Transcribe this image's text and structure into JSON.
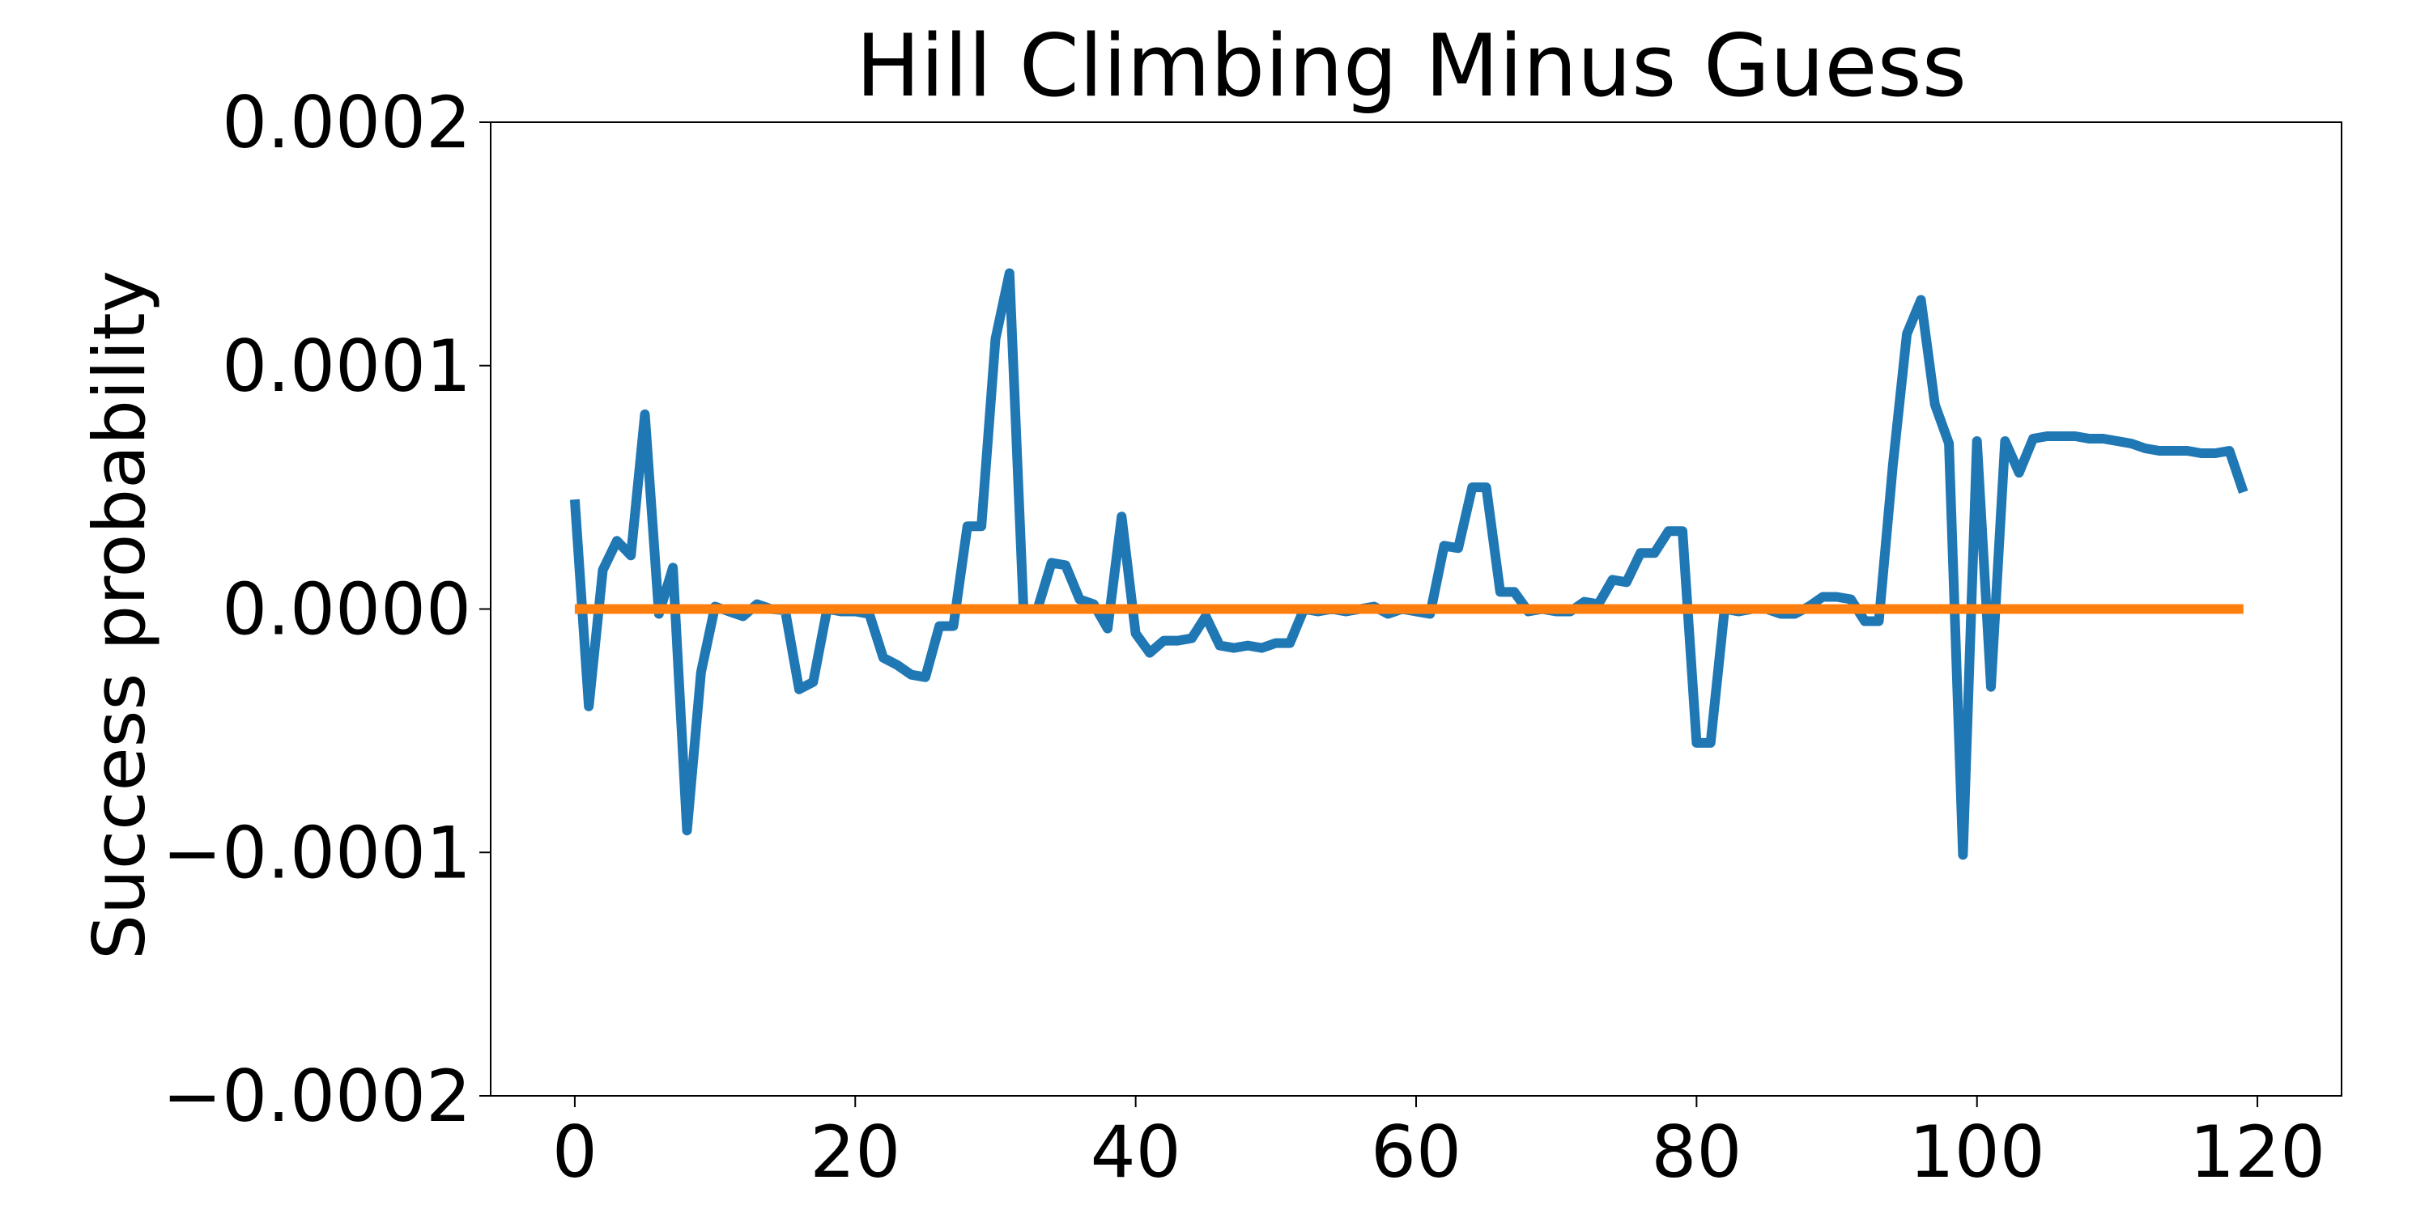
{
  "chart_data": {
    "type": "line",
    "title": "Hill Climbing Minus Guess",
    "xlabel": "",
    "ylabel": "Success probability",
    "xlim": [
      -6,
      126
    ],
    "ylim": [
      -0.0002,
      0.0002
    ],
    "xticks": [
      0,
      20,
      40,
      60,
      80,
      100,
      120
    ],
    "xtick_labels": [
      "0",
      "20",
      "40",
      "60",
      "80",
      "100",
      "120"
    ],
    "yticks": [
      0.0002,
      0.0001,
      0.0,
      -0.0001,
      -0.0002
    ],
    "ytick_labels": [
      "0.0002",
      "0.0001",
      "0.0000",
      "−0.0001",
      "−0.0002"
    ],
    "grid": false,
    "legend": "none",
    "series": [
      {
        "color": "#1f77b4",
        "values": [
          4.5e-05,
          -4e-05,
          1.6e-05,
          2.8e-05,
          2.2e-05,
          8e-05,
          -2e-06,
          1.7e-05,
          -9.1e-05,
          -2.6e-05,
          1e-06,
          -1e-06,
          -3e-06,
          2e-06,
          0.0,
          -5e-07,
          -3.3e-05,
          -3e-05,
          0.0,
          -1e-06,
          -1e-06,
          -2e-06,
          -2e-05,
          -2.3e-05,
          -2.7e-05,
          -2.8e-05,
          -7e-06,
          -7e-06,
          3.4e-05,
          3.4e-05,
          0.000111,
          0.000138,
          0.0,
          0.0,
          1.9e-05,
          1.8e-05,
          4e-06,
          2e-06,
          -8e-06,
          3.8e-05,
          -1e-05,
          -1.8e-05,
          -1.3e-05,
          -1.3e-05,
          -1.2e-05,
          -3e-06,
          -1.5e-05,
          -1.6e-05,
          -1.5e-05,
          -1.6e-05,
          -1.4e-05,
          -1.4e-05,
          0.0,
          -1e-06,
          0.0,
          -1e-06,
          0.0,
          1e-06,
          -2e-06,
          0.0,
          -1e-06,
          -2e-06,
          2.6e-05,
          2.5e-05,
          5e-05,
          5e-05,
          7e-06,
          7e-06,
          -1e-06,
          0.0,
          -1e-06,
          -1e-06,
          3e-06,
          2e-06,
          1.2e-05,
          1.1e-05,
          2.3e-05,
          2.3e-05,
          3.2e-05,
          3.2e-05,
          -5.5e-05,
          -5.5e-05,
          0.0,
          -1e-06,
          0.0,
          0.0,
          -2e-06,
          -2e-06,
          1e-06,
          5e-06,
          5e-06,
          4e-06,
          -5e-06,
          -5e-06,
          5.9e-05,
          0.000113,
          0.000127,
          8.4e-05,
          6.8e-05,
          -0.000101,
          6.9e-05,
          -3.2e-05,
          6.9e-05,
          5.6e-05,
          7e-05,
          7.1e-05,
          7.1e-05,
          7.1e-05,
          7e-05,
          7e-05,
          6.9e-05,
          6.8e-05,
          6.6e-05,
          6.5e-05,
          6.5e-05,
          6.5e-05,
          6.4e-05,
          6.4e-05,
          6.5e-05,
          4.8e-05
        ]
      },
      {
        "color": "#ff7f0e",
        "values": [
          0,
          0,
          0,
          0,
          0,
          0,
          0,
          0,
          0,
          0,
          0,
          0,
          0,
          0,
          0,
          0,
          0,
          0,
          0,
          0,
          0,
          0,
          0,
          0,
          0,
          0,
          0,
          0,
          0,
          0,
          0,
          0,
          0,
          0,
          0,
          0,
          0,
          0,
          0,
          0,
          0,
          0,
          0,
          0,
          0,
          0,
          0,
          0,
          0,
          0,
          0,
          0,
          0,
          0,
          0,
          0,
          0,
          0,
          0,
          0,
          0,
          0,
          0,
          0,
          0,
          0,
          0,
          0,
          0,
          0,
          0,
          0,
          0,
          0,
          0,
          0,
          0,
          0,
          0,
          0,
          0,
          0,
          0,
          0,
          0,
          0,
          0,
          0,
          0,
          0,
          0,
          0,
          0,
          0,
          0,
          0,
          0,
          0,
          0,
          0,
          0,
          0,
          0,
          0,
          0,
          0,
          0,
          0,
          0,
          0,
          0,
          0,
          0,
          0,
          0,
          0,
          0,
          0,
          0,
          0
        ]
      }
    ]
  }
}
